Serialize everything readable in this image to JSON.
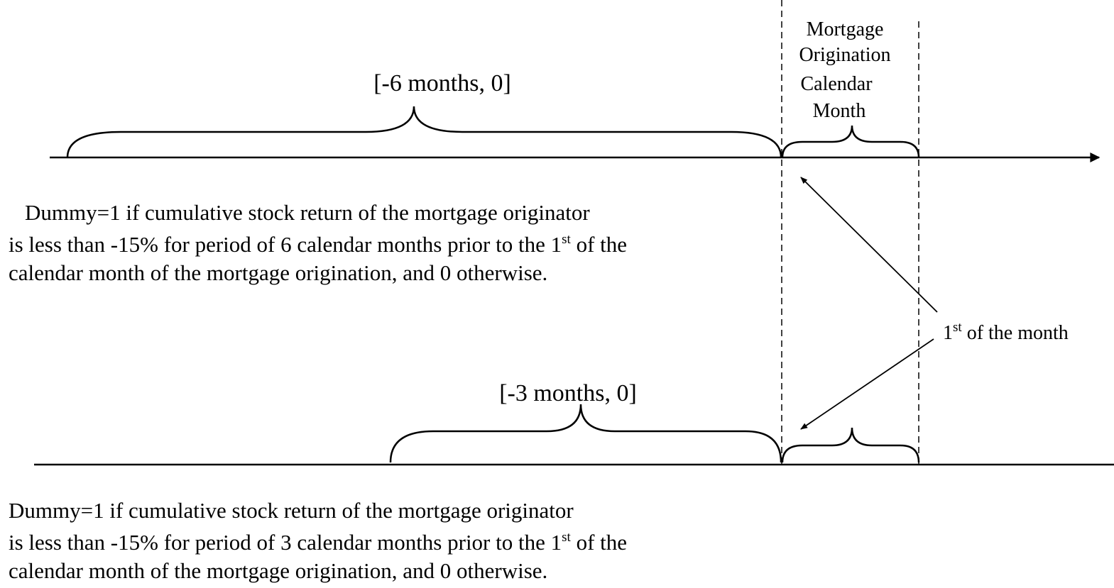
{
  "timelines": [
    {
      "range_label": "[-6 months, 0]",
      "description": {
        "line1": "Dummy=1 if cumulative stock return of the mortgage originator",
        "line2": {
          "before": "is less than -15% for period of 6 calendar months prior to the 1",
          "sup": "st",
          "after": " of the"
        },
        "line3": "calendar month of the mortgage origination, and 0 otherwise."
      }
    },
    {
      "range_label": "[-3 months, 0]",
      "description": {
        "line1": "Dummy=1 if cumulative stock return of the mortgage originator",
        "line2": {
          "before": "is less than -15% for period of 3 calendar months prior to the 1",
          "sup": "st",
          "after": " of the"
        },
        "line3": "calendar month of the mortgage origination, and 0 otherwise."
      }
    }
  ],
  "origination_label": [
    "Mortgage",
    "Origination",
    "Calendar",
    "Month"
  ],
  "pointer_label": {
    "before": "1",
    "sup": "st",
    "after": " of the month"
  }
}
